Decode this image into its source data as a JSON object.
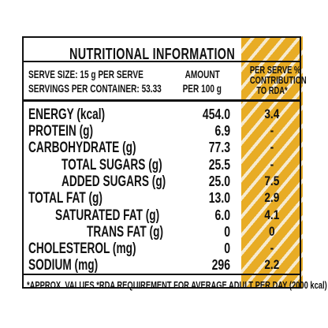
{
  "title": "NUTRITIONAL INFORMATION",
  "header": {
    "serve_size": "SERVE SIZE: 15 g PER SERVE",
    "servings": "SERVINGS PER CONTAINER: 53.33",
    "amount_line1": "AMOUNT",
    "amount_line2": "PER 100 g",
    "pct_line1": "PER SERVE %",
    "pct_line2": "CONTRIBUTION",
    "pct_line3": "TO RDA*"
  },
  "rows": [
    {
      "label": "ENERGY (kcal)",
      "amount": "454.0",
      "rda": "3.4"
    },
    {
      "label": "PROTEIN (g)",
      "amount": "6.9",
      "rda": "-"
    },
    {
      "label": "CARBOHYDRATE (g)",
      "amount": "77.3",
      "rda": "-"
    },
    {
      "label": "TOTAL SUGARS (g)",
      "amount": "25.5",
      "rda": "-"
    },
    {
      "label": "ADDED SUGARS (g)",
      "amount": "25.0",
      "rda": "7.5"
    },
    {
      "label": "TOTAL FAT (g)",
      "amount": "13.0",
      "rda": "2.9"
    },
    {
      "label": "SATURATED FAT (g)",
      "amount": "6.0",
      "rda": "4.1"
    },
    {
      "label": "TRANS FAT (g)",
      "amount": "0",
      "rda": "0"
    },
    {
      "label": "CHOLESTEROL (mg)",
      "amount": "0",
      "rda": "-"
    },
    {
      "label": "SODIUM (mg)",
      "amount": "296",
      "rda": "2.2"
    }
  ],
  "footer": "*APPROX. VALUES *RDA REQUIREMENT FOR AVERAGE ADULT PER DAY (2000 kcal)",
  "colors": {
    "accent": "#e8ac25",
    "stripe_light": "#f6ead0",
    "text": "#111111"
  }
}
